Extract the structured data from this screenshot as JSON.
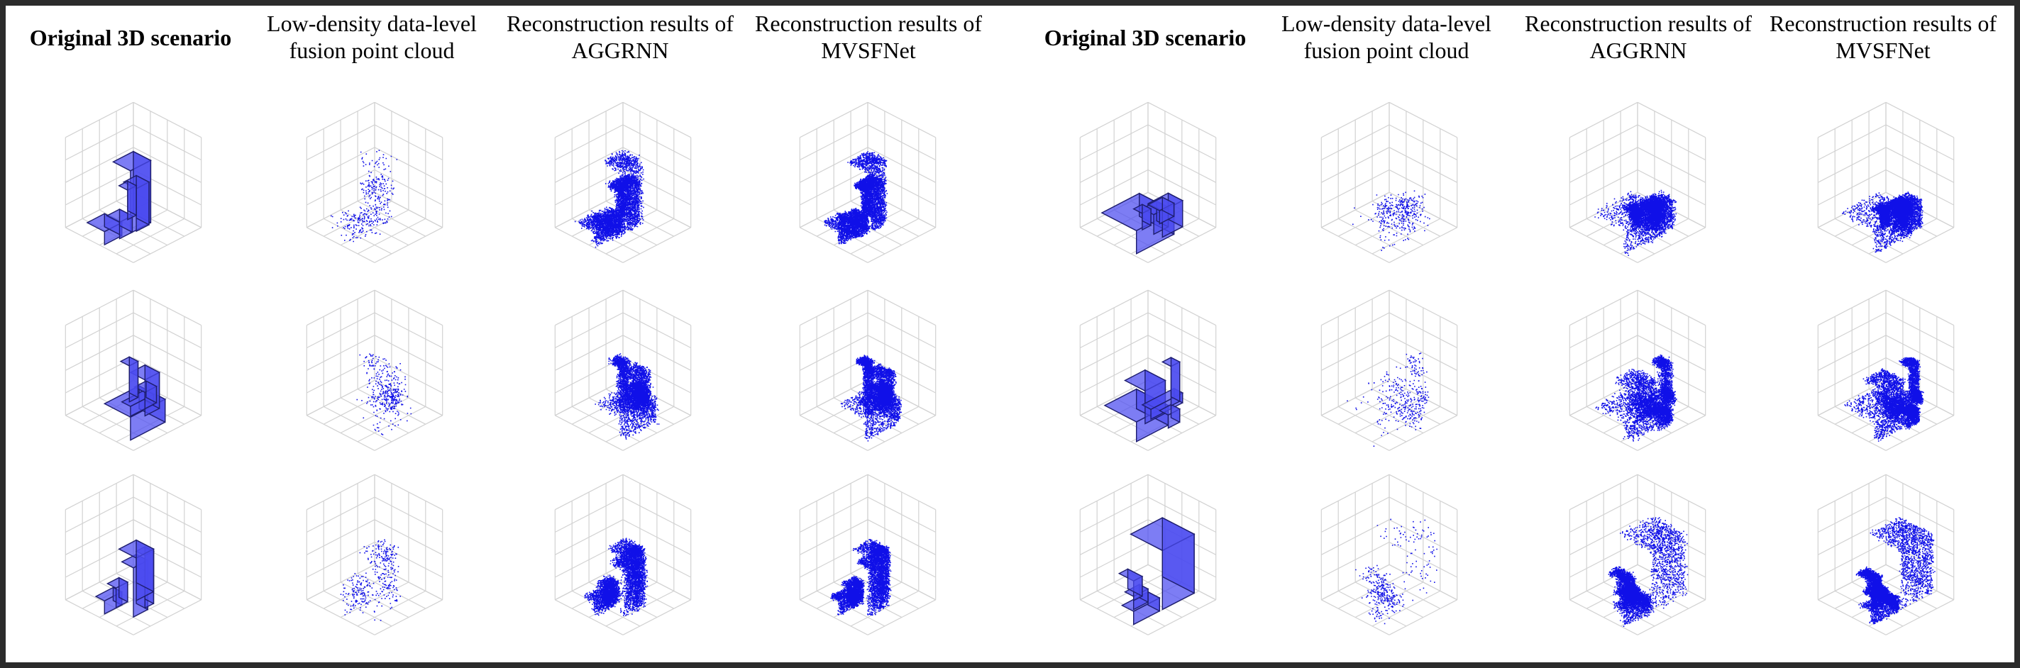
{
  "headers": [
    {
      "text": "Original 3D scenario",
      "bold": true
    },
    {
      "text": "Low-density data-level fusion point cloud",
      "bold": false
    },
    {
      "text": "Reconstruction results of AGGRNN",
      "bold": false
    },
    {
      "text": "Reconstruction results of MVSFNet",
      "bold": false
    },
    {
      "text": "Original 3D scenario",
      "bold": true
    },
    {
      "text": "Low-density data-level fusion point cloud",
      "bold": false
    },
    {
      "text": "Reconstruction results of AGGRNN",
      "bold": false
    },
    {
      "text": "Reconstruction results of MVSFNet",
      "bold": false
    }
  ],
  "colors": {
    "box_fill": "#4b4bf0",
    "box_edge": "#1e1e6e",
    "points": "#1010e8",
    "grid": "#d2d2d2",
    "frame": "#2b2b2b"
  },
  "panel_types": [
    "original",
    "lowdensity",
    "aggrnn",
    "mvsfnet"
  ],
  "scenes": [
    {
      "name": "scene-1",
      "boxes": [
        [
          0.25,
          0.3,
          0.2,
          0.35,
          0.3,
          0.95
        ],
        [
          0.05,
          0.55,
          0,
          0.3,
          0.3,
          0.2
        ],
        [
          0.28,
          0.52,
          0,
          0.22,
          0.22,
          0.25
        ],
        [
          0.55,
          0.5,
          0,
          0.22,
          0.22,
          0.65
        ],
        [
          0.45,
          0.55,
          0.2,
          0.15,
          0.15,
          0.45
        ]
      ]
    },
    {
      "name": "scene-2",
      "boxes": [
        [
          0.15,
          0.2,
          0,
          0.6,
          0.45,
          0.35
        ],
        [
          0.35,
          0.15,
          0.3,
          0.25,
          0.25,
          0.55
        ],
        [
          0.55,
          0.6,
          0,
          0.4,
          0.15,
          0.15
        ],
        [
          0.8,
          0.6,
          0,
          0.2,
          0.18,
          0.25
        ],
        [
          0.78,
          0.85,
          0,
          0.15,
          0.15,
          0.55
        ]
      ]
    },
    {
      "name": "scene-3",
      "boxes": [
        [
          0.1,
          0.6,
          0,
          0.3,
          0.15,
          0.2
        ],
        [
          0.3,
          0.3,
          0,
          0.25,
          0.2,
          0.75
        ],
        [
          0.55,
          0.35,
          0,
          0.15,
          0.15,
          0.8
        ],
        [
          0.6,
          0.55,
          0,
          0.3,
          0.3,
          0.65
        ],
        [
          0.25,
          0.55,
          0.05,
          0.2,
          0.15,
          0.3
        ]
      ]
    },
    {
      "name": "scene-4",
      "boxes": [
        [
          0.05,
          0.25,
          0,
          0.65,
          0.6,
          0.35
        ],
        [
          0.25,
          0.15,
          0.25,
          0.25,
          0.2,
          0.3
        ],
        [
          0.55,
          0.3,
          0,
          0.35,
          0.25,
          0.4
        ],
        [
          0.75,
          0.55,
          0,
          0.25,
          0.2,
          0.2
        ],
        [
          0.5,
          0.6,
          0,
          0.15,
          0.15,
          0.25
        ]
      ]
    },
    {
      "name": "scene-5",
      "boxes": [
        [
          0.05,
          0.25,
          0,
          0.55,
          0.55,
          0.3
        ],
        [
          0.15,
          0.2,
          0.25,
          0.35,
          0.35,
          0.5
        ],
        [
          0.55,
          0.5,
          0,
          0.55,
          0.15,
          0.15
        ],
        [
          0.55,
          0.2,
          0,
          0.2,
          0.15,
          0.2
        ],
        [
          0.95,
          0.55,
          0,
          0.15,
          0.15,
          0.6
        ]
      ]
    },
    {
      "name": "scene-6",
      "boxes": [
        [
          0.05,
          0.3,
          0,
          0.45,
          0.2,
          0.2
        ],
        [
          0.3,
          0.55,
          0,
          0.25,
          0.15,
          0.2
        ],
        [
          0.45,
          0.7,
          0,
          0.15,
          0.25,
          0.3
        ],
        [
          0.55,
          0.3,
          0,
          0.55,
          0.55,
          0.9
        ]
      ]
    }
  ]
}
